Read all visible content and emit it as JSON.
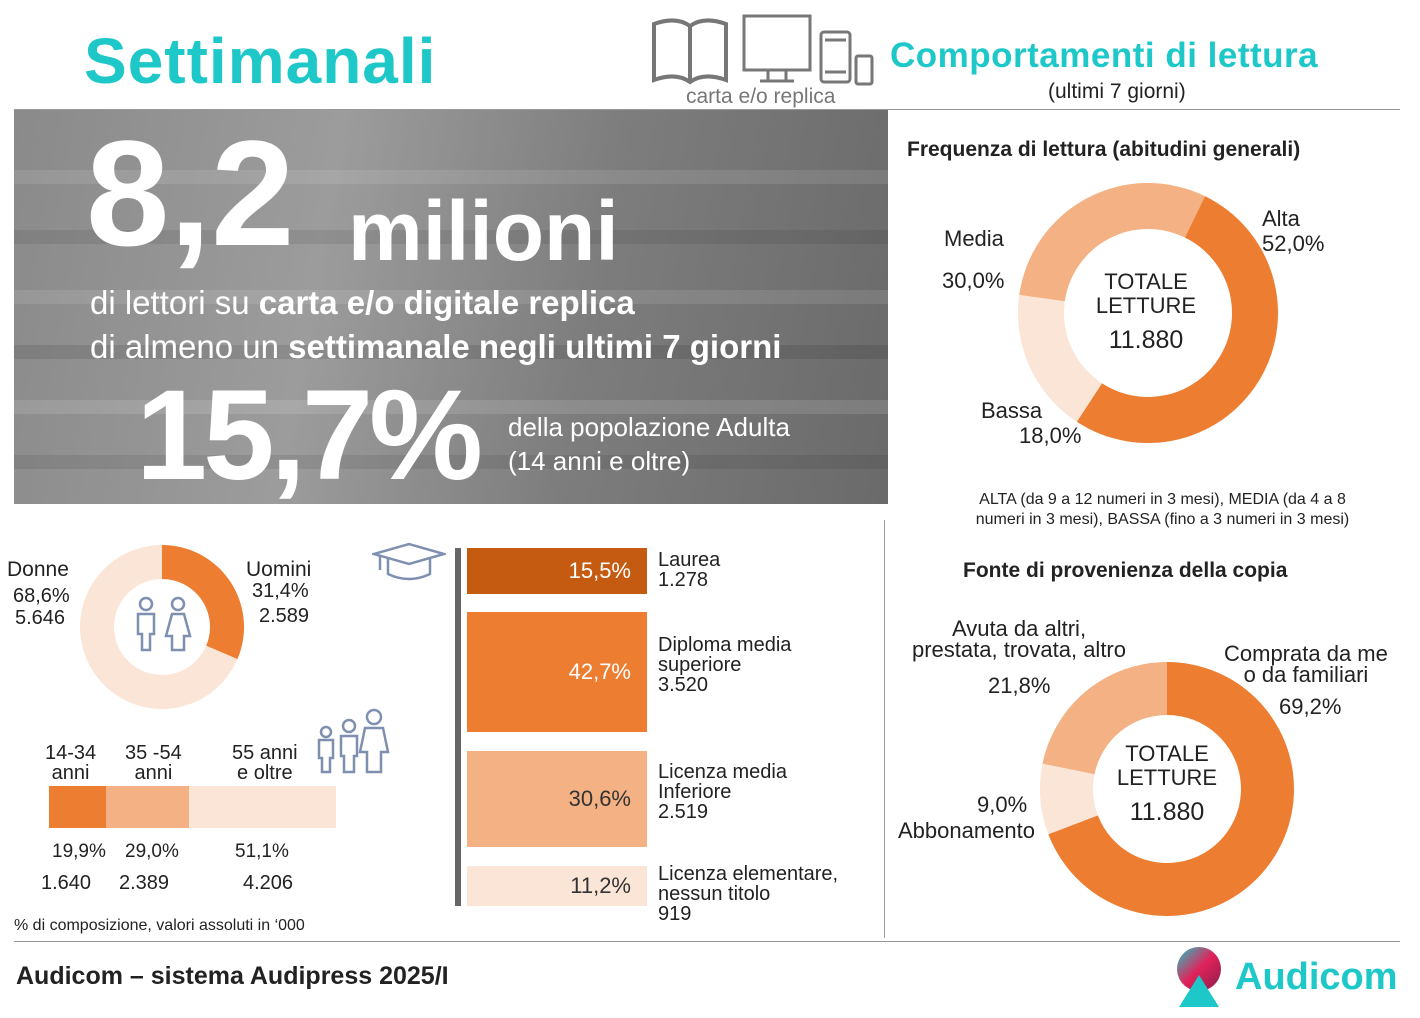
{
  "header": {
    "title": "Settimanali",
    "media_caption": "carta e/o replica",
    "right_title": "Comportamenti di lettura",
    "right_subtitle": "(ultimi 7 giorni)"
  },
  "hero": {
    "big_number": "8,2",
    "big_unit": "milioni",
    "line1_plain": "di lettori su ",
    "line1_bold": "carta e/o digitale replica",
    "line2_plain": "di almeno un ",
    "line2_bold": "settimanale negli ultimi 7 giorni",
    "pct": "15,7%",
    "pct_desc1": "della popolazione Adulta",
    "pct_desc2": "(14 anni e oltre)"
  },
  "colors": {
    "dark": "#c55a11",
    "mid": "#ed7d31",
    "light": "#f4b183",
    "pale": "#fbe5d6",
    "teal": "#1fc8c8"
  },
  "chart_data": [
    {
      "type": "pie",
      "title": "Frequenza di lettura  (abitudini generali)",
      "center_label1": "TOTALE",
      "center_label2": "LETTURE",
      "center_value": "11.880",
      "slices": [
        {
          "name": "Alta",
          "value": 52.0,
          "label": "52,0%"
        },
        {
          "name": "Bassa",
          "value": 18.0,
          "label": "18,0%"
        },
        {
          "name": "Media",
          "value": 30.0,
          "label": "30,0%"
        }
      ],
      "note1": "ALTA (da 9 a 12 numeri in 3 mesi), MEDIA (da 4 a 8",
      "note2": "numeri in 3 mesi), BASSA (fino a 3 numeri in 3 mesi)"
    },
    {
      "type": "pie",
      "title": "Fonte di provenienza della copia",
      "center_label1": "TOTALE",
      "center_label2": "LETTURE",
      "center_value": "11.880",
      "slices": [
        {
          "name1": "Comprata da me",
          "name2": "o da familiari",
          "value": 69.2,
          "label": "69,2%"
        },
        {
          "name1": "Abbonamento",
          "value": 9.0,
          "label": "9,0%"
        },
        {
          "name1": "Avuta da altri,",
          "name2": "prestata, trovata, altro",
          "value": 21.8,
          "label": "21,8%"
        }
      ]
    },
    {
      "type": "pie",
      "slices": [
        {
          "name": "Uomini",
          "value": 31.4,
          "label": "31,4%",
          "abs": "2.589"
        },
        {
          "name": "Donne",
          "value": 68.6,
          "label": "68,6%",
          "abs": "5.646"
        }
      ]
    },
    {
      "type": "bar",
      "orientation": "stacked-horizontal",
      "categories": [
        {
          "l1": "14-34",
          "l2": "anni",
          "value": 19.9,
          "label": "19,9%",
          "abs": "1.640"
        },
        {
          "l1": "35 -54",
          "l2": "anni",
          "value": 29.0,
          "label": "29,0%",
          "abs": "2.389"
        },
        {
          "l1": "55 anni",
          "l2": "e oltre",
          "value": 51.1,
          "label": "51,1%",
          "abs": "4.206"
        }
      ]
    },
    {
      "type": "bar",
      "orientation": "vertical-stack",
      "categories": [
        {
          "l1": "Laurea",
          "l2": "",
          "abs": "1.278",
          "value": 15.5,
          "label": "15,5%"
        },
        {
          "l1": "Diploma media",
          "l2": "superiore",
          "abs": "3.520",
          "value": 42.7,
          "label": "42,7%"
        },
        {
          "l1": "Licenza media",
          "l2": "Inferiore",
          "abs": "2.519",
          "value": 30.6,
          "label": "30,6%"
        },
        {
          "l1": "Licenza elementare,",
          "l2": "nessun titolo",
          "abs": "919",
          "value": 11.2,
          "label": "11,2%"
        }
      ]
    }
  ],
  "footnote": "% di composizione, valori assoluti in ‘000",
  "footer": {
    "source": "Audicom – sistema Audipress 2025/I",
    "brand": "Audicom"
  }
}
